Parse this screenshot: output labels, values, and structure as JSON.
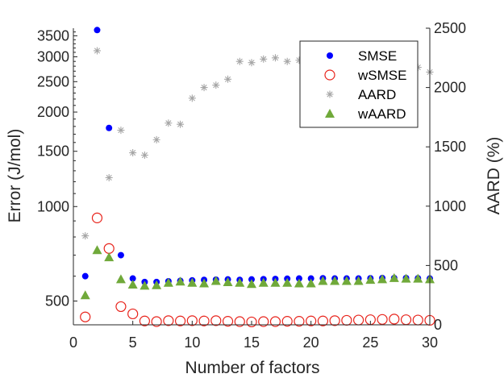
{
  "chart_data": {
    "type": "scatter",
    "xlabel": "Number of factors",
    "ylabel_left": "Error (J/mol)",
    "ylabel_right": "AARD (%)",
    "xlim": [
      0,
      30
    ],
    "ylim_left": [
      420,
      3700
    ],
    "ylim_left_scale": "log",
    "ylim_right": [
      0,
      2500
    ],
    "x_ticks": [
      0,
      5,
      10,
      15,
      20,
      25,
      30
    ],
    "y_left_ticks": [
      500,
      1000,
      1500,
      2000,
      2500,
      3000,
      3500
    ],
    "y_right_ticks": [
      0,
      500,
      1000,
      1500,
      2000,
      2500
    ],
    "grid": false,
    "legend_position": "top-right",
    "series": [
      {
        "name": "SMSE",
        "axis": "left",
        "marker": "filled-circle",
        "color": "#0000ff",
        "x": [
          1,
          2,
          3,
          4,
          5,
          6,
          7,
          8,
          9,
          10,
          11,
          12,
          13,
          14,
          15,
          16,
          17,
          18,
          19,
          20,
          21,
          22,
          23,
          24,
          25,
          26,
          27,
          28,
          29,
          30
        ],
        "values": [
          600,
          3650,
          1780,
          700,
          590,
          575,
          575,
          578,
          580,
          582,
          584,
          585,
          586,
          584,
          586,
          587,
          588,
          589,
          590,
          590,
          591,
          590,
          590,
          590,
          591,
          592,
          592,
          592,
          591,
          590
        ]
      },
      {
        "name": "wSMSE",
        "axis": "left",
        "marker": "open-circle",
        "color": "#e8231b",
        "x": [
          1,
          2,
          3,
          4,
          5,
          6,
          7,
          8,
          9,
          10,
          11,
          12,
          13,
          14,
          15,
          16,
          17,
          18,
          19,
          20,
          21,
          22,
          23,
          24,
          25,
          26,
          27,
          28,
          29,
          30
        ],
        "values": [
          445,
          920,
          735,
          480,
          455,
          432,
          430,
          433,
          432,
          433,
          432,
          433,
          431,
          430,
          429,
          430,
          430,
          431,
          431,
          432,
          432,
          433,
          434,
          435,
          436,
          437,
          438,
          436,
          435,
          434
        ]
      },
      {
        "name": "AARD",
        "axis": "right",
        "marker": "asterisk",
        "color": "#a6a6a6",
        "x": [
          1,
          2,
          3,
          4,
          5,
          6,
          7,
          8,
          9,
          10,
          11,
          12,
          13,
          14,
          15,
          16,
          17,
          18,
          19,
          20,
          21,
          22,
          23,
          24,
          25,
          26,
          27,
          28,
          29,
          30
        ],
        "values": [
          750,
          2310,
          1240,
          1640,
          1450,
          1430,
          1560,
          1700,
          1690,
          1910,
          2000,
          2020,
          2070,
          2220,
          2210,
          2240,
          2250,
          2220,
          2230,
          2240,
          2230,
          2220,
          2230,
          2240,
          2220,
          2230,
          2250,
          2230,
          2170,
          2130
        ]
      },
      {
        "name": "wAARD",
        "axis": "right",
        "marker": "filled-triangle",
        "color": "#70a93a",
        "x": [
          1,
          2,
          3,
          4,
          5,
          6,
          7,
          8,
          9,
          10,
          11,
          12,
          13,
          14,
          15,
          16,
          17,
          18,
          19,
          20,
          21,
          22,
          23,
          24,
          25,
          26,
          27,
          28,
          29,
          30
        ],
        "values": [
          250,
          630,
          570,
          385,
          340,
          330,
          335,
          355,
          365,
          355,
          350,
          370,
          360,
          355,
          345,
          355,
          355,
          355,
          350,
          350,
          370,
          370,
          370,
          370,
          380,
          385,
          395,
          390,
          390,
          385
        ]
      }
    ]
  }
}
